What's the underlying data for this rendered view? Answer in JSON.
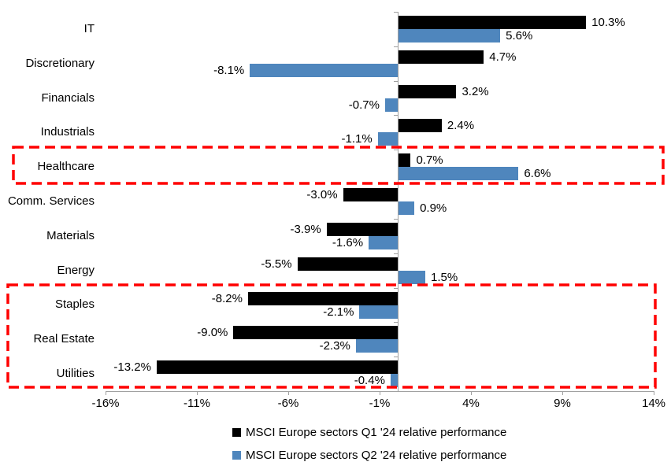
{
  "chart_data": {
    "type": "bar",
    "orientation": "horizontal",
    "title": "",
    "categories": [
      "IT",
      "Discretionary",
      "Financials",
      "Industrials",
      "Healthcare",
      "Comm. Services",
      "Materials",
      "Energy",
      "Staples",
      "Real Estate",
      "Utilities"
    ],
    "series": [
      {
        "name": "MSCI Europe sectors Q1 '24 relative performance",
        "color": "#000000",
        "values": [
          10.3,
          4.7,
          3.2,
          2.4,
          0.7,
          -3.0,
          -3.9,
          -5.5,
          -8.2,
          -9.0,
          -13.2
        ]
      },
      {
        "name": "MSCI Europe sectors Q2 '24 relative performance",
        "color": "#4F86BD",
        "values": [
          5.6,
          -8.1,
          -0.7,
          -1.1,
          6.6,
          0.9,
          -1.6,
          1.5,
          -2.1,
          -2.3,
          -0.4
        ]
      }
    ],
    "value_label_format": "0.0%",
    "x_axis": {
      "min": -16,
      "max": 14,
      "tick_interval": 5,
      "ticks": [
        "-16%",
        "-11%",
        "-6%",
        "-1%",
        "4%",
        "9%",
        "14%"
      ],
      "unit": "%"
    },
    "grid": false,
    "legend_position": "bottom",
    "axis_color": "#A0A0A0",
    "annotations": [
      {
        "type": "highlight-box",
        "style": "red-dashed",
        "color": "#FF0000",
        "rows": [
          "Healthcare"
        ]
      },
      {
        "type": "highlight-box",
        "style": "red-dashed",
        "color": "#FF0000",
        "rows": [
          "Staples",
          "Real Estate",
          "Utilities"
        ]
      }
    ]
  }
}
